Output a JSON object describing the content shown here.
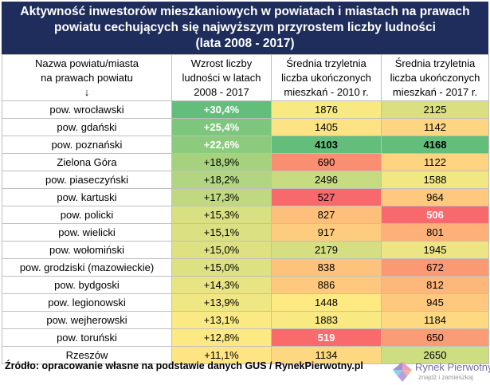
{
  "title": {
    "line1": "Aktywność inwestorów mieszkaniowych w powiatach i miastach na prawach",
    "line2": "powiatu cechujących się najwyższym przyrostem liczby ludności",
    "line3": "(lata 2008 - 2017)"
  },
  "headers": {
    "col1": [
      "Nazwa powiatu/miasta",
      "na prawach powiatu",
      "↓"
    ],
    "col2": [
      "Wzrost liczby",
      "ludności w latach",
      "2008 - 2017"
    ],
    "col3": [
      "Średnia trzyletnia",
      "liczba ukończonych",
      "mieszkań - 2010 r."
    ],
    "col4": [
      "Średnia trzyletnia",
      "liczba ukończonych",
      "mieszkań - 2017 r."
    ]
  },
  "rows": [
    {
      "name": "pow. wrocławski",
      "growth": "+30,4%",
      "v2010": "1876",
      "v2017": "2125"
    },
    {
      "name": "pow. gdański",
      "growth": "+25,4%",
      "v2010": "1405",
      "v2017": "1142"
    },
    {
      "name": "pow. poznański",
      "growth": "+22,6%",
      "v2010": "4103",
      "v2017": "4168"
    },
    {
      "name": "Zielona Góra",
      "growth": "+18,9%",
      "v2010": "690",
      "v2017": "1122"
    },
    {
      "name": "pow. piaseczyński",
      "growth": "+18,2%",
      "v2010": "2496",
      "v2017": "1588"
    },
    {
      "name": "pow. kartuski",
      "growth": "+17,3%",
      "v2010": "527",
      "v2017": "964"
    },
    {
      "name": "pow. policki",
      "growth": "+15,3%",
      "v2010": "827",
      "v2017": "506"
    },
    {
      "name": "pow. wielicki",
      "growth": "+15,1%",
      "v2010": "917",
      "v2017": "801"
    },
    {
      "name": "pow. wołomiński",
      "growth": "+15,0%",
      "v2010": "2179",
      "v2017": "1945"
    },
    {
      "name": "pow. grodziski (mazowieckie)",
      "growth": "+15,0%",
      "v2010": "838",
      "v2017": "672"
    },
    {
      "name": "pow. bydgoski",
      "growth": "+14,3%",
      "v2010": "886",
      "v2017": "812"
    },
    {
      "name": "pow. legionowski",
      "growth": "+13,9%",
      "v2010": "1448",
      "v2017": "945"
    },
    {
      "name": "pow. wejherowski",
      "growth": "+13,1%",
      "v2010": "1883",
      "v2017": "1184"
    },
    {
      "name": "pow. toruński",
      "growth": "+12,8%",
      "v2010": "519",
      "v2017": "650"
    },
    {
      "name": "Rzeszów",
      "growth": "+11,1%",
      "v2010": "1134",
      "v2017": "2650"
    }
  ],
  "colors": {
    "title_bg": "#1f2d5c",
    "growth": [
      "#63be7b",
      "#7dc67d",
      "#8ccb7e",
      "#a6d27f",
      "#b1d580",
      "#c0d980",
      "#d9e082",
      "#dbe082",
      "#dde182",
      "#dde182",
      "#e9e483",
      "#f0e683",
      "#fbe983",
      "#fde983",
      "#fee482"
    ],
    "v2010": [
      "#f9e983",
      "#fde383",
      "#63be7b",
      "#fa8e72",
      "#c7db81",
      "#f8696b",
      "#fdc07c",
      "#fecc7f",
      "#d5df82",
      "#fdc37d",
      "#fec97e",
      "#fee983",
      "#f8e983",
      "#f86a6b",
      "#fed880"
    ],
    "v2017": [
      "#dae082",
      "#fed580",
      "#63be7b",
      "#fed480",
      "#f1e783",
      "#fec97e",
      "#f8696b",
      "#fdb179",
      "#ede583",
      "#fa9974",
      "#fdb77a",
      "#fec87e",
      "#fed981",
      "#fa9c75",
      "#ccdd82"
    ],
    "bold_2010": [
      2,
      13
    ],
    "bold_2017": [
      2,
      6
    ]
  },
  "footer": {
    "source": "Źródło: opracowanie własne na podstawie danych GUS / RynekPierwotny.pl",
    "logo_name": "Rynek Pierwotny",
    "logo_tagline": "znajdź i zamieszkaj"
  }
}
